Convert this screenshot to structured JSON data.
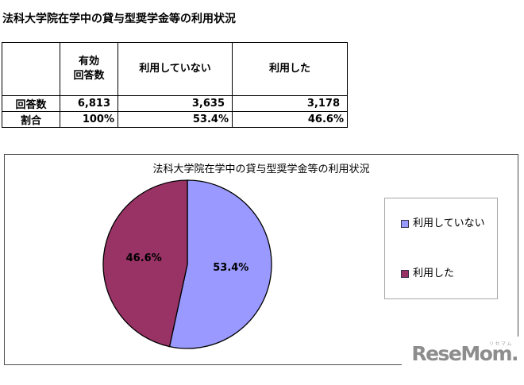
{
  "page_title": "法科大学院在学中の貸与型奨学金等の利用状況",
  "table": {
    "headers": [
      "",
      "有効\n回答数",
      "利用していない",
      "利用した"
    ],
    "row_labels": [
      "回答数",
      "割合"
    ],
    "rows": [
      [
        "6,813",
        "3,635",
        "3,178"
      ],
      [
        "100%",
        "53.4%",
        "46.6%"
      ]
    ]
  },
  "chart_data": {
    "type": "pie",
    "title": "法科大学院在学中の貸与型奨学金等の利用状況",
    "labels": [
      "利用していない",
      "利用した"
    ],
    "values": [
      53.4,
      46.6
    ],
    "slice_labels": [
      "53.4%",
      "46.6%"
    ],
    "colors": [
      "#9999FF",
      "#993366"
    ],
    "slice_border_color": "#000000",
    "legend_position": "right",
    "start_angle_deg": 0,
    "direction": "clockwise"
  },
  "watermark": {
    "text": "ReseMom.",
    "kana": "リセマム"
  }
}
